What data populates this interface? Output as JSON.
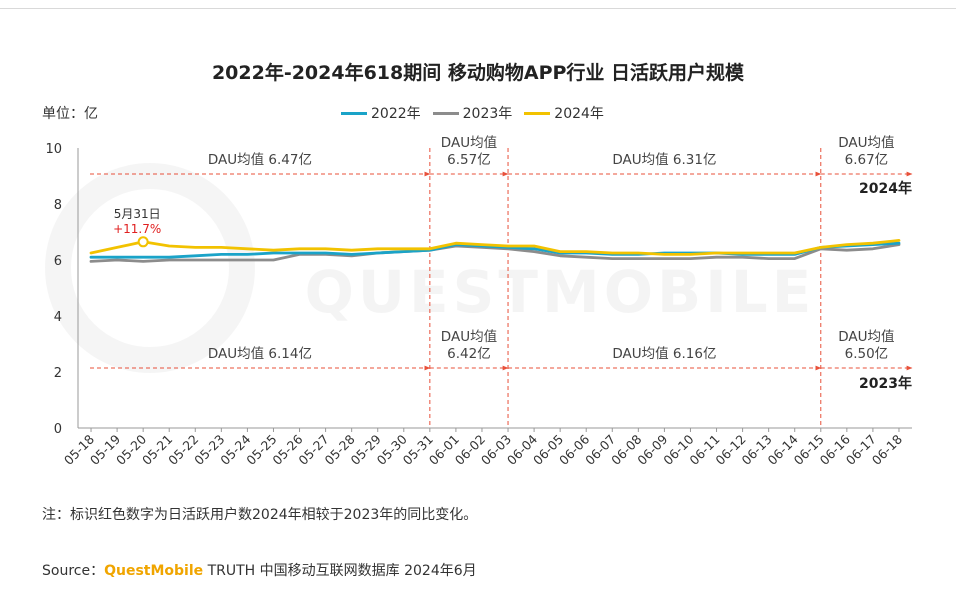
{
  "chart_data": {
    "type": "line",
    "title": "2022年-2024年618期间 移动购物APP行业 日活跃用户规模",
    "unit_label": "单位：亿",
    "ylim": [
      0,
      10
    ],
    "yticks": [
      0,
      2,
      4,
      6,
      8,
      10
    ],
    "x": [
      "05-18",
      "05-19",
      "05-20",
      "05-21",
      "05-22",
      "05-23",
      "05-24",
      "05-25",
      "05-26",
      "05-27",
      "05-28",
      "05-29",
      "05-30",
      "05-31",
      "06-01",
      "06-02",
      "06-03",
      "06-04",
      "06-05",
      "06-06",
      "06-07",
      "06-08",
      "06-09",
      "06-10",
      "06-11",
      "06-12",
      "06-13",
      "06-14",
      "06-15",
      "06-16",
      "06-17",
      "06-18"
    ],
    "series": [
      {
        "name": "2022年",
        "color": "#1aa3c8",
        "values": [
          6.1,
          6.1,
          6.1,
          6.1,
          6.15,
          6.2,
          6.2,
          6.25,
          6.25,
          6.25,
          6.2,
          6.25,
          6.3,
          6.35,
          6.55,
          6.5,
          6.45,
          6.4,
          6.25,
          6.25,
          6.2,
          6.2,
          6.25,
          6.25,
          6.25,
          6.2,
          6.2,
          6.2,
          6.45,
          6.5,
          6.55,
          6.6
        ]
      },
      {
        "name": "2023年",
        "color": "#8c8c8c",
        "values": [
          5.95,
          6.0,
          5.95,
          6.0,
          6.0,
          6.0,
          6.0,
          6.0,
          6.2,
          6.2,
          6.15,
          6.25,
          6.3,
          6.35,
          6.5,
          6.45,
          6.4,
          6.3,
          6.15,
          6.1,
          6.05,
          6.05,
          6.05,
          6.05,
          6.1,
          6.1,
          6.05,
          6.05,
          6.4,
          6.35,
          6.4,
          6.55
        ]
      },
      {
        "name": "2024年",
        "color": "#f2c200",
        "values": [
          6.25,
          6.45,
          6.65,
          6.5,
          6.45,
          6.45,
          6.4,
          6.35,
          6.4,
          6.4,
          6.35,
          6.4,
          6.4,
          6.4,
          6.6,
          6.55,
          6.5,
          6.5,
          6.3,
          6.3,
          6.25,
          6.25,
          6.2,
          6.2,
          6.25,
          6.25,
          6.25,
          6.25,
          6.45,
          6.55,
          6.6,
          6.7
        ]
      }
    ],
    "period_boundaries": [
      "05-31",
      "06-03",
      "06-15"
    ],
    "period_averages": {
      "2024年": [
        {
          "label": "DAU均值 6.47亿"
        },
        {
          "label": "DAU均值",
          "value": "6.57亿"
        },
        {
          "label": "DAU均值 6.31亿"
        },
        {
          "label": "DAU均值",
          "value": "6.67亿"
        }
      ],
      "2023年": [
        {
          "label": "DAU均值 6.14亿"
        },
        {
          "label": "DAU均值",
          "value": "6.42亿"
        },
        {
          "label": "DAU均值 6.16亿"
        },
        {
          "label": "DAU均值",
          "value": "6.50亿"
        }
      ]
    },
    "year_tags": [
      "2024年",
      "2023年"
    ],
    "callout": {
      "x": "05-20",
      "date": "5月31日",
      "change": "+11.7%"
    }
  },
  "note": "注：标识红色数字为日活跃用户数2024年相较于2023年的同比变化。",
  "source": {
    "prefix": "Source：",
    "brand": "QuestMobile",
    "rest": " TRUTH 中国移动互联网数据库 2024年6月"
  },
  "watermark": "QUESTMOBILE",
  "colors": {
    "boundary": "#e8503a",
    "arrow": "#e8503a"
  }
}
